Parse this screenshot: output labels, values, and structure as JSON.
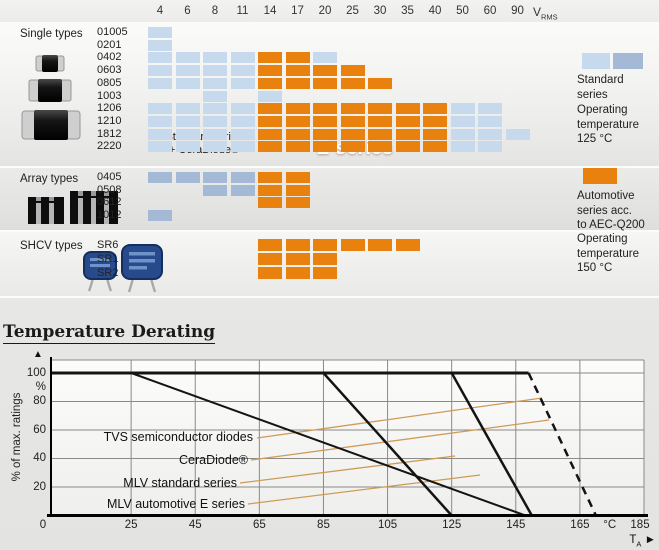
{
  "colors": {
    "standard_single": "#c7d9ed",
    "standard_array": "#a4b9d6",
    "automotive": "#e8810e",
    "leader": "#cf9a59",
    "grid": "#8a8a8a",
    "line": "#141414"
  },
  "matrix": {
    "columns": [
      "4",
      "6",
      "8",
      "11",
      "14",
      "17",
      "20",
      "25",
      "30",
      "35",
      "40",
      "50",
      "60",
      "90"
    ],
    "vrms": {
      "base": "V",
      "sub": "RMS"
    },
    "sections": [
      {
        "title": "Single types",
        "rows": [
          {
            "label": "01005",
            "blue": [
              "4"
            ],
            "orange": []
          },
          {
            "label": "0201",
            "blue": [
              "4"
            ],
            "orange": []
          },
          {
            "label": "0402",
            "blue": [
              "4",
              "6",
              "8",
              "11",
              "20"
            ],
            "orange": [
              "14",
              "17"
            ]
          },
          {
            "label": "0603",
            "blue": [
              "4",
              "6",
              "8",
              "11"
            ],
            "orange": [
              "14",
              "17",
              "20",
              "25"
            ]
          },
          {
            "label": "0805",
            "blue": [
              "4",
              "6",
              "8",
              "11"
            ],
            "orange": [
              "14",
              "17",
              "20",
              "25",
              "30"
            ]
          },
          {
            "label": "1003",
            "blue": [
              "8",
              "14"
            ],
            "orange": []
          },
          {
            "label": "1206",
            "blue": [
              "4",
              "6",
              "8",
              "11",
              "50",
              "60"
            ],
            "orange": [
              "14",
              "17",
              "20",
              "25",
              "30",
              "35",
              "40"
            ]
          },
          {
            "label": "1210",
            "blue": [
              "4",
              "6",
              "8",
              "11",
              "50",
              "60"
            ],
            "orange": [
              "14",
              "17",
              "20",
              "25",
              "30",
              "35",
              "40"
            ]
          },
          {
            "label": "1812",
            "blue": [
              "4",
              "6",
              "8",
              "11",
              "50",
              "60",
              "90"
            ],
            "orange": [
              "14",
              "17",
              "20",
              "25",
              "30",
              "35",
              "40"
            ]
          },
          {
            "label": "2220",
            "blue": [
              "4",
              "6",
              "8",
              "11",
              "50",
              "60"
            ],
            "orange": [
              "14",
              "17",
              "20",
              "25",
              "30",
              "35",
              "40"
            ]
          }
        ]
      },
      {
        "title": "Array types",
        "rows": [
          {
            "label": "0405",
            "blue": [
              "4",
              "6",
              "8",
              "11"
            ],
            "orange": [
              "14",
              "17"
            ]
          },
          {
            "label": "0508",
            "blue": [
              "8",
              "11"
            ],
            "orange": [
              "14",
              "17"
            ]
          },
          {
            "label": "0612",
            "blue": [],
            "orange": [
              "14",
              "17"
            ]
          },
          {
            "label": "1012",
            "blue": [
              "4"
            ],
            "orange": []
          }
        ]
      },
      {
        "title": "SHCV types",
        "rows": [
          {
            "label": "SR6",
            "blue": [],
            "orange": [
              "14",
              "17",
              "20",
              "25",
              "30",
              "35"
            ]
          },
          {
            "label": "SR1",
            "blue": [],
            "orange": [
              "14",
              "17",
              "20"
            ]
          },
          {
            "label": "SR2",
            "blue": [],
            "orange": [
              "14",
              "17",
              "20"
            ]
          }
        ]
      }
    ],
    "overlay": {
      "line1": "Standard series",
      "line2": "+ CeraDiode®",
      "eseries": "E series"
    }
  },
  "legend": {
    "standard_label": "Standard\nseries",
    "op125": "Operating\ntemperature\n125 °C",
    "automotive_label": "Automotive\nseries acc.\nto AEC-Q200",
    "op150": "Operating\ntemperature\n150 °C"
  },
  "derating": {
    "title": "Temperature Derating",
    "ylabel": "% of max. ratings",
    "up_arrow": "▲",
    "ta": {
      "base": "T",
      "sub": "A",
      "arrow": "►"
    },
    "chart_data": {
      "type": "line",
      "title": "Temperature Derating",
      "xlabel": "T_A (°C)",
      "ylabel": "% of max. ratings",
      "xlim": [
        0,
        185
      ],
      "ylim": [
        0,
        109
      ],
      "grid": true,
      "legend_position": "inside-left",
      "xticks": [
        {
          "label": "0",
          "t": 0,
          "dx": -8
        },
        {
          "label": "25",
          "t": 25
        },
        {
          "label": "45",
          "t": 45
        },
        {
          "label": "65",
          "t": 65
        },
        {
          "label": "85",
          "t": 85
        },
        {
          "label": "105",
          "t": 105
        },
        {
          "label": "125",
          "t": 125
        },
        {
          "label": "145",
          "t": 145
        },
        {
          "label": "165",
          "t": 165
        },
        {
          "label": "°C",
          "t": 174.3
        },
        {
          "label": "185",
          "t": 185,
          "dx": -4
        }
      ],
      "yticks": [
        {
          "label": "100",
          "p": 100
        },
        {
          "label": "%",
          "p": 90
        },
        {
          "label": "80",
          "p": 80
        },
        {
          "label": "60",
          "p": 60
        },
        {
          "label": "40",
          "p": 40
        },
        {
          "label": "20",
          "p": 20
        }
      ],
      "gridx": [
        25,
        45,
        65,
        85,
        105,
        125,
        145,
        165,
        185
      ],
      "gridy": [
        20,
        40,
        60,
        80,
        100
      ],
      "series": [
        {
          "name": "full-rating-100pct",
          "w": 3,
          "points": [
            [
              0,
              100
            ],
            [
              149,
              100
            ]
          ]
        },
        {
          "name": "shcv-dashed-extension",
          "w": 2.5,
          "dash": "8 6",
          "points": [
            [
              149,
              100
            ],
            [
              170,
              0
            ]
          ]
        },
        {
          "name": "TVS semiconductor diodes",
          "w": 2,
          "points": [
            [
              25,
              100
            ],
            [
              148,
              0
            ]
          ]
        },
        {
          "name": "MLV standard series",
          "w": 2.5,
          "points": [
            [
              85,
              100
            ],
            [
              125,
              0
            ]
          ]
        },
        {
          "name": "MLV automotive E series",
          "w": 2.5,
          "points": [
            [
              125,
              100
            ],
            [
              150,
              0
            ]
          ]
        }
      ],
      "curve_labels": [
        {
          "text": "TVS semiconductor diodes",
          "right": 253,
          "top": 430,
          "leader": [
            257,
            438,
            542,
            398
          ]
        },
        {
          "text": "CeraDiode®",
          "right": 248,
          "top": 453,
          "leader": [
            251,
            460,
            549,
            420
          ]
        },
        {
          "text": "MLV standard series",
          "right": 237,
          "top": 476,
          "leader": [
            240,
            483,
            455,
            456
          ]
        },
        {
          "text": "MLV automotive E series",
          "right": 245,
          "top": 497,
          "leader": [
            248,
            504,
            480,
            475
          ]
        }
      ]
    }
  }
}
